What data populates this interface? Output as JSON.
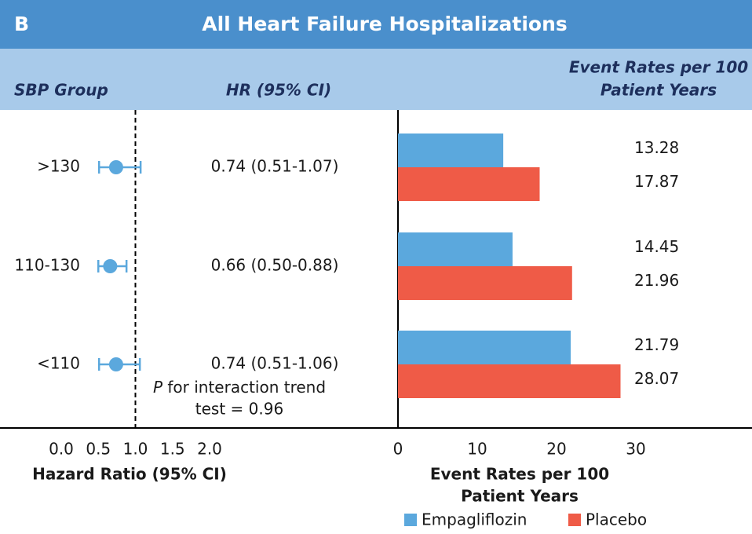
{
  "panel_label": "B",
  "title": "All Heart Failure Hospitalizations",
  "chart_data": [
    {
      "type": "forest",
      "color": "#5ba8dd",
      "columns": [
        "SBP Group",
        "HR (95% CI)"
      ],
      "categories": [
        ">130",
        "110-130",
        "<110"
      ],
      "values": [
        0.74,
        0.66,
        0.74
      ],
      "ci_low": [
        0.51,
        0.5,
        0.51
      ],
      "ci_high": [
        1.07,
        0.88,
        1.06
      ],
      "value_labels": [
        "0.74 (0.51-1.07)",
        "0.66 (0.50-0.88)",
        "0.74 (0.51-1.06)"
      ],
      "xlim": [
        0,
        2
      ],
      "xticks": [
        {
          "value": 0,
          "label": "0.0"
        },
        0.5,
        {
          "value": 1,
          "label": "1.0"
        },
        1.5,
        {
          "value": 2,
          "label": "2.0"
        }
      ],
      "reference_line": 1,
      "xlabel": "Hazard Ratio (95% CI)",
      "annotation": {
        "italic": "P",
        "lines": [
          "for interaction trend",
          "test = 0.96"
        ]
      }
    },
    {
      "type": "bar",
      "orientation": "horizontal",
      "header": [
        "Event Rates per 100",
        "Patient Years"
      ],
      "series": [
        {
          "name": "Empagliflozin",
          "color": "#5ba8dd",
          "values": [
            13.28,
            14.45,
            21.79
          ]
        },
        {
          "name": "Placebo",
          "color": "#ef5b47",
          "values": [
            17.87,
            21.96,
            28.07
          ]
        }
      ],
      "xlim": [
        0,
        30
      ],
      "xticks": [
        0,
        10,
        20,
        30
      ],
      "xlabel": [
        "Event Rates per 100",
        "Patient Years"
      ]
    }
  ]
}
